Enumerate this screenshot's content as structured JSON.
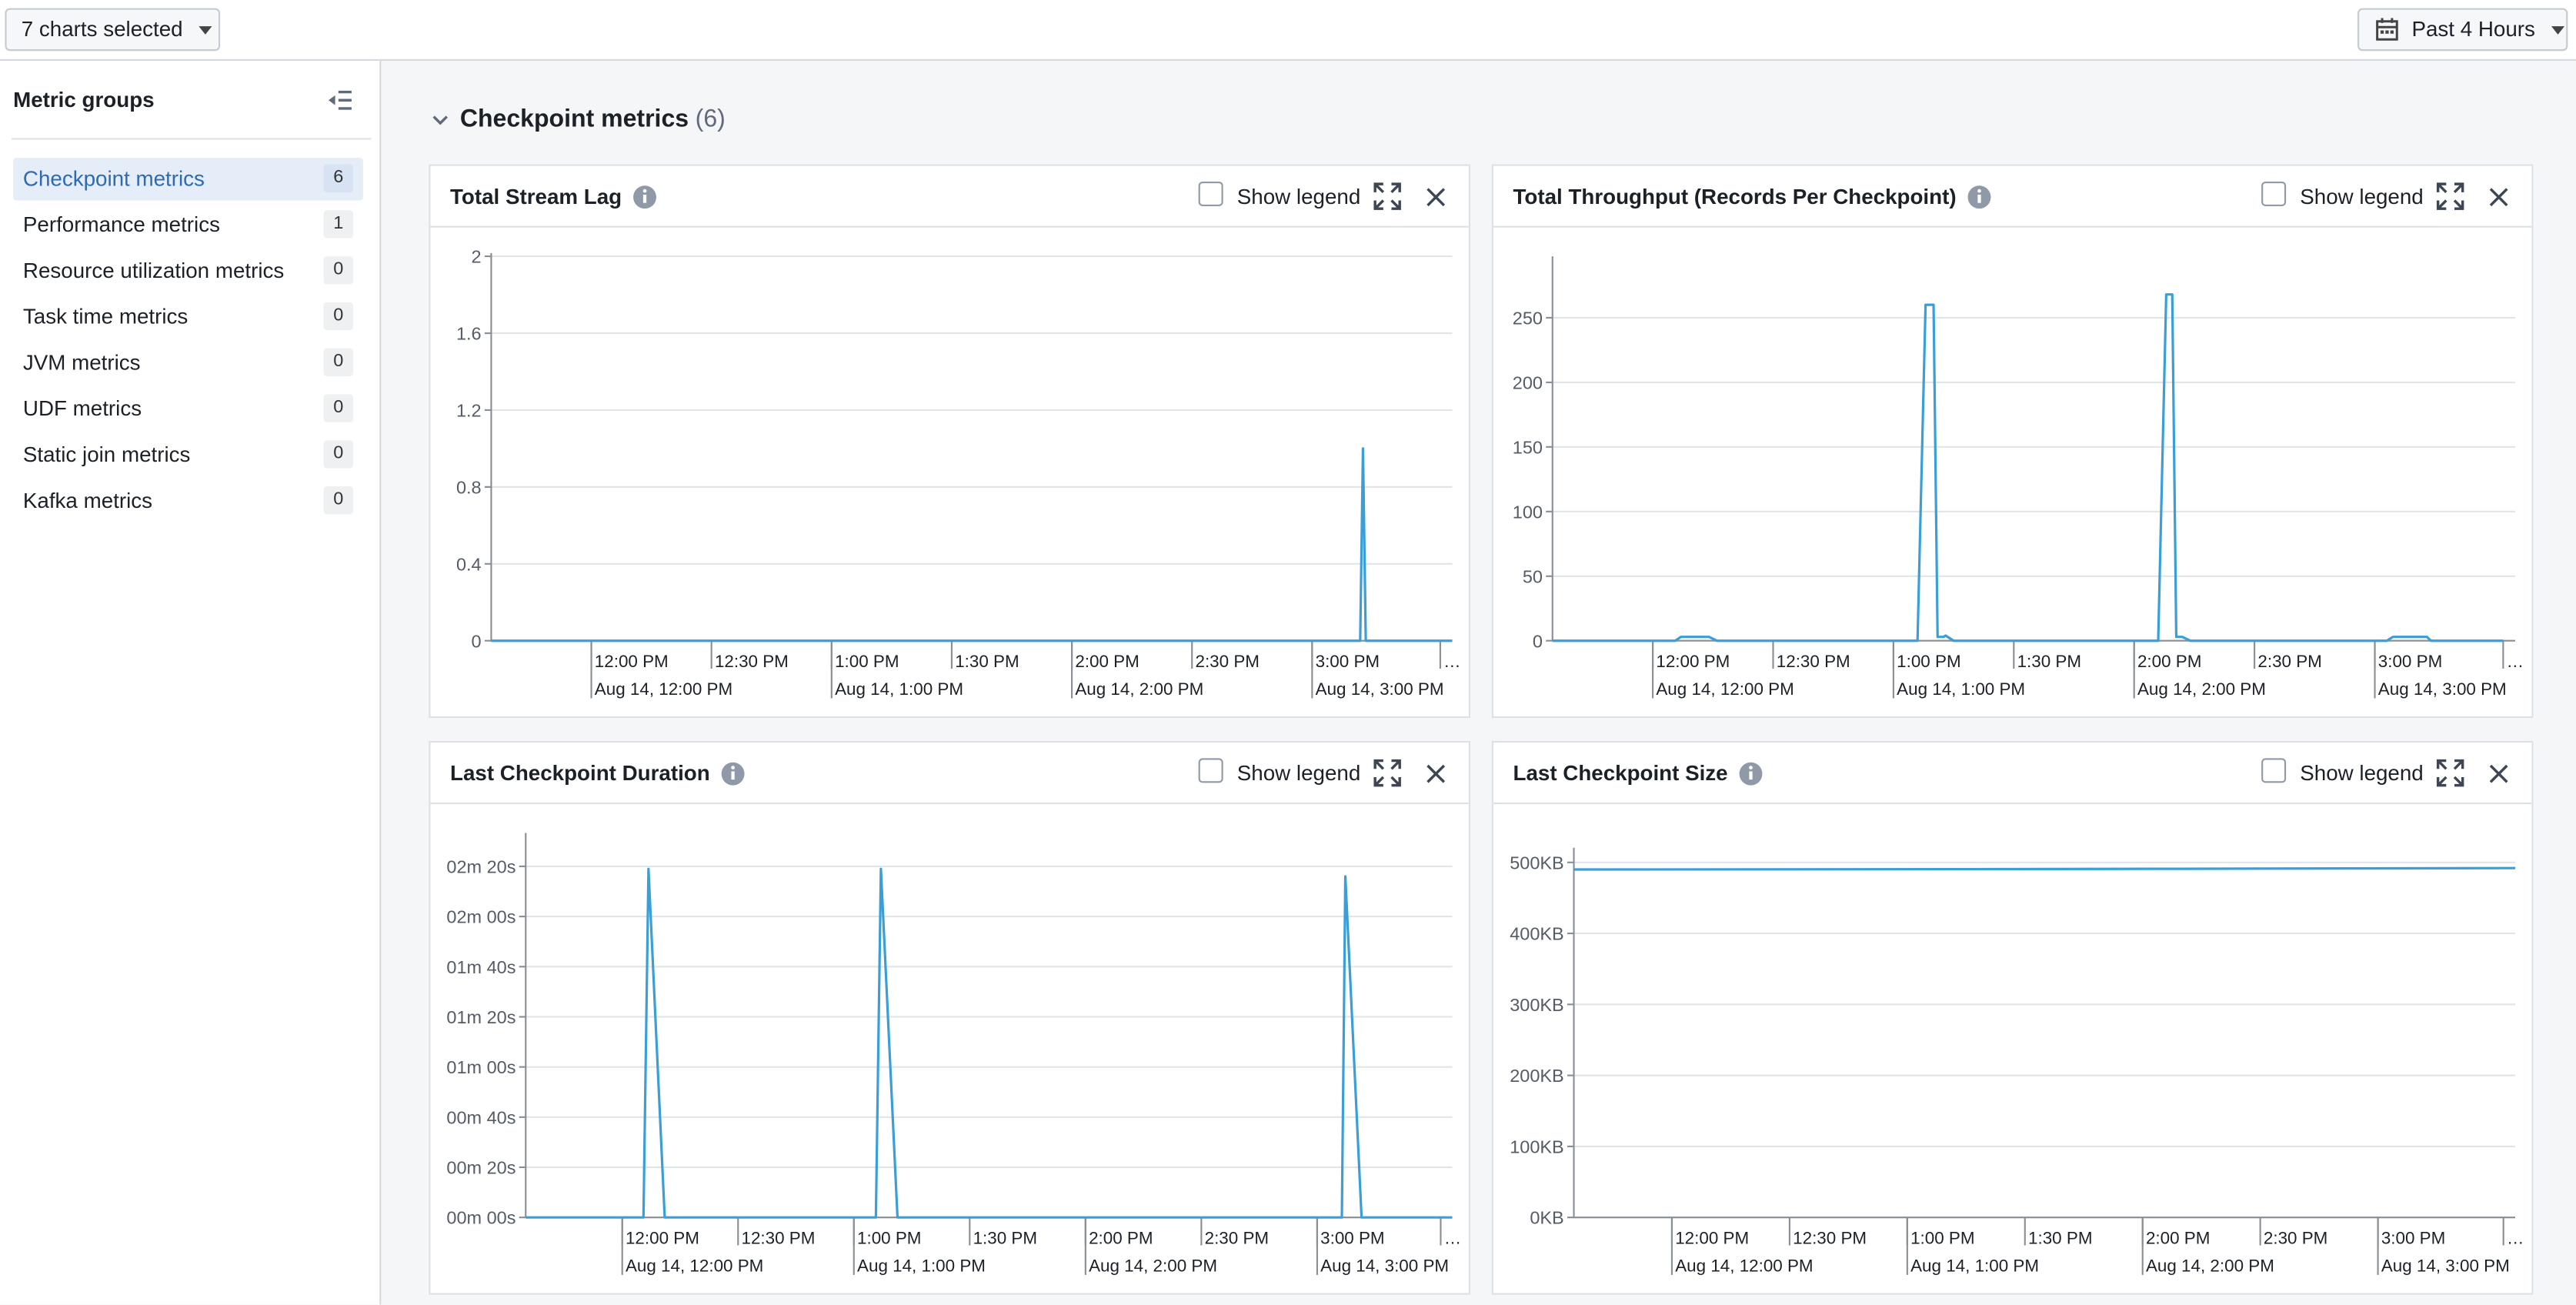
{
  "toolbar": {
    "selection": "7 charts selected",
    "range": "Past 4 Hours"
  },
  "sidebar": {
    "title": "Metric groups",
    "items": [
      {
        "label": "Checkpoint metrics",
        "count": 6
      },
      {
        "label": "Performance metrics",
        "count": 1
      },
      {
        "label": "Resource utilization metrics",
        "count": 0
      },
      {
        "label": "Task time metrics",
        "count": 0
      },
      {
        "label": "JVM metrics",
        "count": 0
      },
      {
        "label": "UDF metrics",
        "count": 0
      },
      {
        "label": "Static join metrics",
        "count": 0
      },
      {
        "label": "Kafka metrics",
        "count": 0
      }
    ]
  },
  "section": {
    "title": "Checkpoint metrics",
    "count": "(6)"
  },
  "chart_data": [
    {
      "type": "line",
      "title": "Total Stream Lag",
      "legend_toggle": "Show legend",
      "color": "#3a9fd8",
      "x": [
        695,
        912,
        912.7,
        913.4,
        935
      ],
      "values": [
        0,
        0,
        1,
        0,
        0
      ],
      "xlim": [
        695,
        935
      ],
      "ylim": [
        0,
        2
      ],
      "yticks": [
        0,
        0.4,
        0.8,
        1.2,
        1.6,
        2
      ],
      "xticks": [
        {
          "value": 720,
          "label": "12:00 PM"
        },
        {
          "value": 750,
          "label": "12:30 PM"
        },
        {
          "value": 780,
          "label": "1:00 PM"
        },
        {
          "value": 810,
          "label": "1:30 PM"
        },
        {
          "value": 840,
          "label": "2:00 PM"
        },
        {
          "value": 870,
          "label": "2:30 PM"
        },
        {
          "value": 900,
          "label": "3:00 PM"
        },
        {
          "value": 932,
          "label": "…"
        }
      ],
      "xticks_major": [
        {
          "value": 720,
          "label": "Aug 14, 12:00 PM"
        },
        {
          "value": 780,
          "label": "Aug 14, 1:00 PM"
        },
        {
          "value": 840,
          "label": "Aug 14, 2:00 PM"
        },
        {
          "value": 900,
          "label": "Aug 14, 3:00 PM"
        }
      ]
    },
    {
      "type": "line",
      "title": "Total Throughput (Records Per Checkpoint)",
      "legend_toggle": "Show legend",
      "color": "#3a9fd8",
      "x": [
        695,
        725.6,
        727,
        734,
        736,
        786,
        788,
        790,
        791,
        792.5,
        793,
        795,
        846,
        848,
        849.5,
        850.5,
        852,
        854,
        903,
        904.5,
        913,
        914,
        932
      ],
      "values": [
        0,
        0,
        3,
        3,
        0,
        0,
        260,
        260,
        3,
        3,
        4,
        0,
        0,
        268,
        268,
        3,
        3,
        0,
        0,
        3,
        3,
        0,
        0
      ],
      "xlim": [
        695,
        935
      ],
      "ylim": [
        0,
        295
      ],
      "yticks": [
        0,
        50,
        100,
        150,
        200,
        250
      ],
      "xticks": [
        {
          "value": 720,
          "label": "12:00 PM"
        },
        {
          "value": 750,
          "label": "12:30 PM"
        },
        {
          "value": 780,
          "label": "1:00 PM"
        },
        {
          "value": 810,
          "label": "1:30 PM"
        },
        {
          "value": 840,
          "label": "2:00 PM"
        },
        {
          "value": 870,
          "label": "2:30 PM"
        },
        {
          "value": 900,
          "label": "3:00 PM"
        },
        {
          "value": 932,
          "label": "…"
        }
      ],
      "xticks_major": [
        {
          "value": 720,
          "label": "Aug 14, 12:00 PM"
        },
        {
          "value": 780,
          "label": "Aug 14, 1:00 PM"
        },
        {
          "value": 840,
          "label": "Aug 14, 2:00 PM"
        },
        {
          "value": 900,
          "label": "Aug 14, 3:00 PM"
        }
      ]
    },
    {
      "type": "line",
      "title": "Last Checkpoint Duration",
      "legend_toggle": "Show legend",
      "color": "#3a9fd8",
      "x": [
        695,
        725.5,
        726.8,
        731,
        785.7,
        787,
        791.3,
        906.4,
        907.3,
        911.5,
        935
      ],
      "values": [
        0,
        0,
        139,
        0,
        0,
        139,
        0,
        0,
        136,
        0,
        0
      ],
      "xlim": [
        695,
        935
      ],
      "ylim": [
        0,
        152
      ],
      "yticks": [
        {
          "value": 0,
          "label": "00m 00s"
        },
        {
          "value": 20,
          "label": "00m 20s"
        },
        {
          "value": 40,
          "label": "00m 40s"
        },
        {
          "value": 60,
          "label": "01m 00s"
        },
        {
          "value": 80,
          "label": "01m 20s"
        },
        {
          "value": 100,
          "label": "01m 40s"
        },
        {
          "value": 120,
          "label": "02m 00s"
        },
        {
          "value": 140,
          "label": "02m 20s"
        }
      ],
      "xticks": [
        {
          "value": 720,
          "label": "12:00 PM"
        },
        {
          "value": 750,
          "label": "12:30 PM"
        },
        {
          "value": 780,
          "label": "1:00 PM"
        },
        {
          "value": 810,
          "label": "1:30 PM"
        },
        {
          "value": 840,
          "label": "2:00 PM"
        },
        {
          "value": 870,
          "label": "2:30 PM"
        },
        {
          "value": 900,
          "label": "3:00 PM"
        },
        {
          "value": 932,
          "label": "…"
        }
      ],
      "xticks_major": [
        {
          "value": 720,
          "label": "Aug 14, 12:00 PM"
        },
        {
          "value": 780,
          "label": "Aug 14, 1:00 PM"
        },
        {
          "value": 840,
          "label": "Aug 14, 2:00 PM"
        },
        {
          "value": 900,
          "label": "Aug 14, 3:00 PM"
        }
      ]
    },
    {
      "type": "line",
      "title": "Last Checkpoint Size",
      "legend_toggle": "Show legend",
      "color": "#3a9fd8",
      "x": [
        695,
        790,
        850,
        935
      ],
      "values": [
        490,
        490.5,
        491,
        492
      ],
      "xlim": [
        695,
        935
      ],
      "ylim": [
        0,
        516
      ],
      "yticks": [
        {
          "value": 0,
          "label": "0KB"
        },
        {
          "value": 100,
          "label": "100KB"
        },
        {
          "value": 200,
          "label": "200KB"
        },
        {
          "value": 300,
          "label": "300KB"
        },
        {
          "value": 400,
          "label": "400KB"
        },
        {
          "value": 500,
          "label": "500KB"
        }
      ],
      "xticks": [
        {
          "value": 720,
          "label": "12:00 PM"
        },
        {
          "value": 750,
          "label": "12:30 PM"
        },
        {
          "value": 780,
          "label": "1:00 PM"
        },
        {
          "value": 810,
          "label": "1:30 PM"
        },
        {
          "value": 840,
          "label": "2:00 PM"
        },
        {
          "value": 870,
          "label": "2:30 PM"
        },
        {
          "value": 900,
          "label": "3:00 PM"
        },
        {
          "value": 932,
          "label": "…"
        }
      ],
      "xticks_major": [
        {
          "value": 720,
          "label": "Aug 14, 12:00 PM"
        },
        {
          "value": 780,
          "label": "Aug 14, 1:00 PM"
        },
        {
          "value": 840,
          "label": "Aug 14, 2:00 PM"
        },
        {
          "value": 900,
          "label": "Aug 14, 3:00 PM"
        }
      ]
    }
  ]
}
